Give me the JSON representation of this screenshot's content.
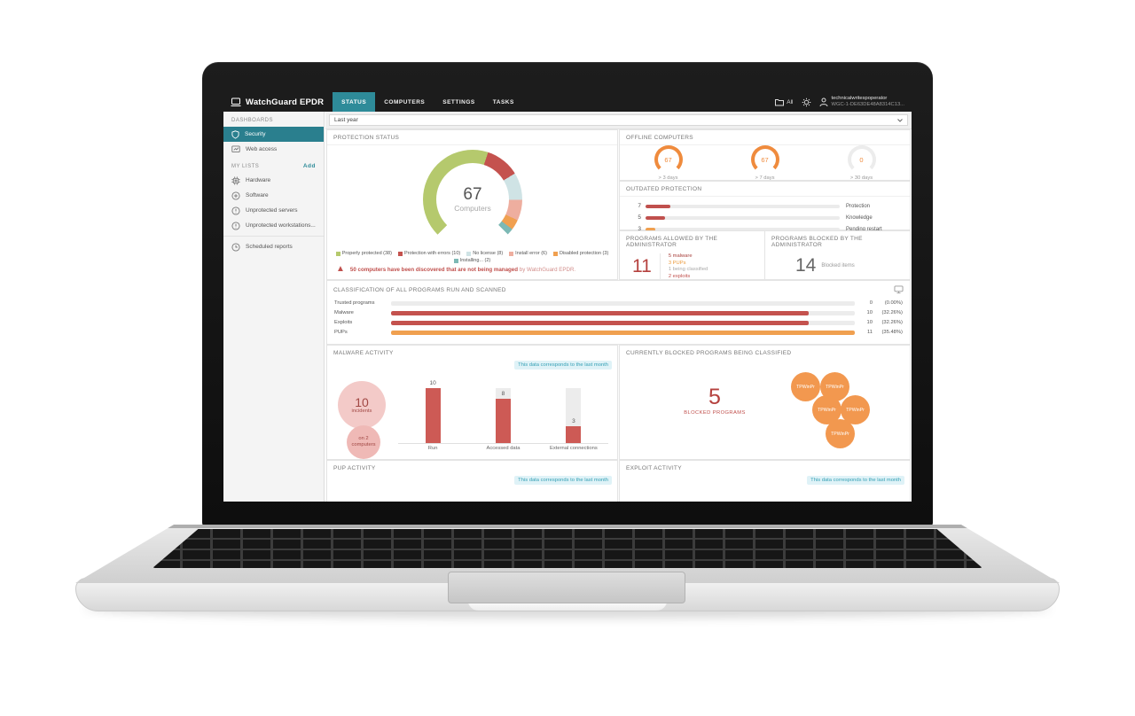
{
  "nav": {
    "brand": "WatchGuard EPDR",
    "tabs": [
      {
        "label": "STATUS",
        "active": true
      },
      {
        "label": "COMPUTERS",
        "active": false
      },
      {
        "label": "SETTINGS",
        "active": false
      },
      {
        "label": "TASKS",
        "active": false
      }
    ],
    "scope_label": "All",
    "user_name": "technicalwritespoperator",
    "user_id": "WGC-1-DE63DE48A8314C13..."
  },
  "sidebar": {
    "dashboards_header": "DASHBOARDS",
    "dashboard_items": [
      {
        "label": "Security",
        "active": true
      },
      {
        "label": "Web access",
        "active": false
      }
    ],
    "my_lists_header": "MY LISTS",
    "add_label": "Add",
    "list_items": [
      {
        "label": "Hardware"
      },
      {
        "label": "Software"
      },
      {
        "label": "Unprotected servers"
      },
      {
        "label": "Unprotected workstations..."
      },
      {
        "label": "Scheduled reports"
      }
    ]
  },
  "filter": {
    "selected": "Last year"
  },
  "protection_status": {
    "title": "PROTECTION STATUS",
    "center_value": "67",
    "center_label": "Computers",
    "segments": [
      {
        "label": "Properly protected (38)",
        "value": 38,
        "color": "#b5c96d"
      },
      {
        "label": "Protection with errors (10)",
        "value": 10,
        "color": "#c4524e"
      },
      {
        "label": "No license (8)",
        "value": 8,
        "color": "#cfe3e5"
      },
      {
        "label": "Install error (6)",
        "value": 6,
        "color": "#eeae9f"
      },
      {
        "label": "Disabled protection (3)",
        "value": 3,
        "color": "#f0a050"
      },
      {
        "label": "Installing... (2)",
        "value": 2,
        "color": "#7db9b5"
      }
    ],
    "warning_bold": "50 computers have been discovered that are not being managed",
    "warning_rest": " by WatchGuard EPDR."
  },
  "offline_computers": {
    "title": "OFFLINE COMPUTERS",
    "gauges": [
      {
        "value": "67",
        "label": "> 3 days",
        "filled": true
      },
      {
        "value": "67",
        "label": "> 7 days",
        "filled": true
      },
      {
        "value": "0",
        "label": "> 30 days",
        "filled": false
      }
    ]
  },
  "outdated_protection": {
    "title": "OUTDATED PROTECTION",
    "rows": [
      {
        "value": "7",
        "label": "Protection",
        "pct": 13,
        "color": "#c0504d"
      },
      {
        "value": "5",
        "label": "Knowledge",
        "pct": 10,
        "color": "#c0504d"
      },
      {
        "value": "3",
        "label": "Pending restart",
        "pct": 5,
        "color": "#f0a050"
      }
    ]
  },
  "programs_allowed": {
    "title": "PROGRAMS ALLOWED BY THE ADMINISTRATOR",
    "value": "11",
    "items": [
      {
        "text": "5 malware",
        "color": "#a8403c"
      },
      {
        "text": "3 PUPs",
        "color": "#eb9a3c"
      },
      {
        "text": "1 being classified",
        "color": "#aaaaaa"
      },
      {
        "text": "2 exploits",
        "color": "#c0504d"
      }
    ]
  },
  "programs_blocked": {
    "title": "PROGRAMS BLOCKED BY THE ADMINISTRATOR",
    "value": "14",
    "label": "Blocked items"
  },
  "classification": {
    "title": "CLASSIFICATION OF ALL PROGRAMS RUN AND SCANNED",
    "rows": [
      {
        "label": "Trusted programs",
        "value": "0",
        "pct_label": "(0.00%)",
        "pct": 0,
        "color": "#c4524e"
      },
      {
        "label": "Malware",
        "value": "10",
        "pct_label": "(32.26%)",
        "pct": 90,
        "color": "#c4524e"
      },
      {
        "label": "Exploits",
        "value": "10",
        "pct_label": "(32.26%)",
        "pct": 90,
        "color": "#c4524e"
      },
      {
        "label": "PUPs",
        "value": "11",
        "pct_label": "(35.48%)",
        "pct": 100,
        "color": "#f0a050"
      }
    ]
  },
  "malware_activity": {
    "title": "MALWARE ACTIVITY",
    "badge": "This data corresponds to the last month",
    "incidents_value": "10",
    "incidents_label": "incidents",
    "computers_line1": "on 2",
    "computers_line2": "computers",
    "max": 10,
    "bars": [
      {
        "label": "Run",
        "value": 10
      },
      {
        "label": "Accessed data",
        "value": 8
      },
      {
        "label": "External connections",
        "value": 3
      }
    ]
  },
  "blocked_classified": {
    "title": "CURRENTLY BLOCKED PROGRAMS BEING CLASSIFIED",
    "value": "5",
    "label": "BLOCKED PROGRAMS",
    "bubbles": [
      "TPWinPr",
      "TPWinPr",
      "TPWinPr",
      "TPWinPr",
      "TPWinPr"
    ]
  },
  "pup_activity": {
    "title": "PUP ACTIVITY",
    "badge": "This data corresponds to the last month"
  },
  "exploit_activity": {
    "title": "EXPLOIT ACTIVITY",
    "badge": "This data corresponds to the last month"
  },
  "colors": {
    "accent_teal": "#2e8b99",
    "red": "#c4524e",
    "orange": "#f0a050",
    "green": "#b5c96d",
    "gauge_orange": "#ef8b3d"
  }
}
